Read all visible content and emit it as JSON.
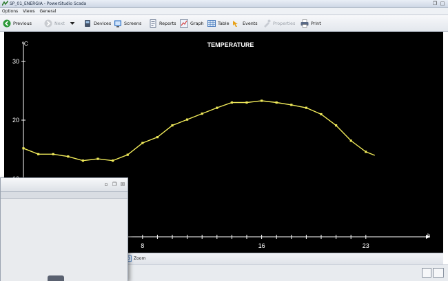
{
  "window": {
    "title": "SP_01_ENERGIA - PowerStudio Scada",
    "buttons": [
      "restore-icon",
      "maximize-icon"
    ]
  },
  "menu": [
    {
      "label": "Options"
    },
    {
      "label": "Views"
    },
    {
      "label": "General"
    }
  ],
  "toolbar": {
    "previous": "Previous",
    "next": "Next",
    "devices": "Devices",
    "screens": "Screens",
    "reports": "Reports",
    "graph": "Graph",
    "table": "Table",
    "events": "Events",
    "properties": "Properties",
    "print": "Print"
  },
  "bottom": {
    "zoom_label": "Zoom"
  },
  "colors": {
    "chart_background": "#000000",
    "series_line": "#f0ea5a",
    "axis": "#ffffff"
  },
  "chart_data": {
    "type": "line",
    "title": "TEMPERATURE",
    "ylabel": "ºC",
    "xlabel": "h",
    "ylim": [
      10,
      32
    ],
    "xlim": [
      0,
      23.5
    ],
    "yticks": [
      10,
      20,
      30
    ],
    "xtick_labels": [
      {
        "x": 8,
        "label": "8"
      },
      {
        "x": 16,
        "label": "16"
      },
      {
        "x": 23,
        "label": "23"
      }
    ],
    "grid": false,
    "series": [
      {
        "x": [
          0,
          1,
          2,
          3,
          4,
          5,
          6,
          7,
          8,
          9,
          10,
          11,
          12,
          13,
          14,
          15,
          16,
          17,
          18,
          19,
          20,
          21,
          22,
          23,
          23.6
        ],
        "values": [
          15.2,
          14.2,
          14.2,
          13.8,
          13.1,
          13.4,
          13.1,
          14.1,
          16.1,
          17.1,
          19.1,
          20.1,
          21.1,
          22.1,
          23.0,
          23.0,
          23.3,
          23.0,
          22.6,
          22.1,
          21.0,
          19.1,
          16.5,
          14.6,
          14.0
        ]
      }
    ]
  }
}
